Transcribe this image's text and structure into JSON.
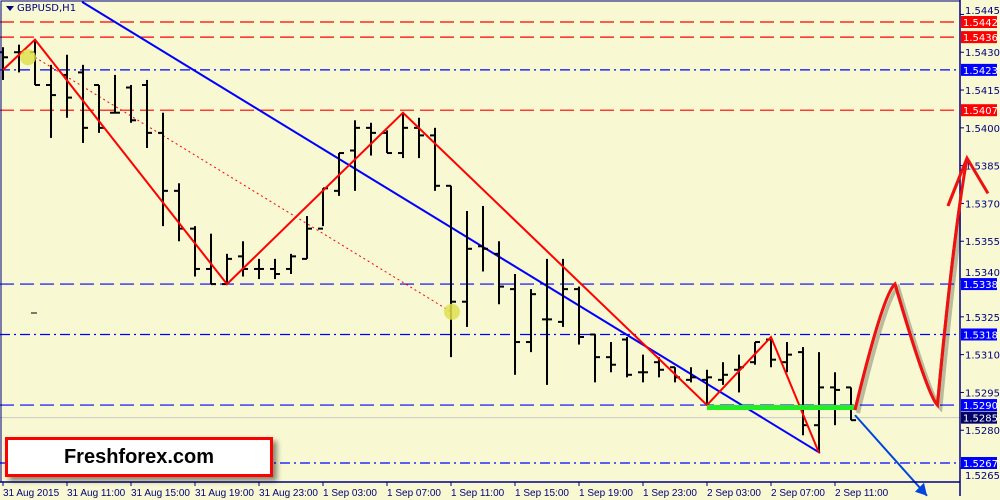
{
  "chart_data": {
    "type": "ohlc",
    "symbol_title": "GBPUSD,H1",
    "x_tick_labels": [
      "31 Aug 2015",
      "31 Aug 11:00",
      "31 Aug 15:00",
      "31 Aug 19:00",
      "31 Aug 23:00",
      "1 Sep 03:00",
      "1 Sep 07:00",
      "1 Sep 11:00",
      "1 Sep 15:00",
      "1 Sep 19:00",
      "1 Sep 23:00",
      "2 Sep 03:00",
      "2 Sep 07:00",
      "2 Sep 11:00"
    ],
    "y_tick_labels": [
      "1.5445",
      "1.5430",
      "1.5415",
      "1.5400",
      "1.5385",
      "1.5370",
      "1.5355",
      "1.5340",
      "1.5325",
      "1.5310",
      "1.5295",
      "1.5280",
      "1.5265"
    ],
    "ylim": [
      1.5255,
      1.545
    ],
    "bars_ohlc": [
      [
        1.543,
        1.5432,
        1.5419,
        1.5428
      ],
      [
        1.543,
        1.5433,
        1.5422,
        1.543
      ],
      [
        1.543,
        1.5435,
        1.5417,
        1.5417
      ],
      [
        1.5417,
        1.5425,
        1.5396,
        1.5413
      ],
      [
        1.5421,
        1.5429,
        1.5404,
        1.5412
      ],
      [
        1.5422,
        1.5425,
        1.5394,
        1.54
      ],
      [
        1.5417,
        1.5417,
        1.5398,
        1.54
      ],
      [
        1.5406,
        1.5421,
        1.5406,
        1.5406
      ],
      [
        1.5416,
        1.5417,
        1.5402,
        1.5403
      ],
      [
        1.5417,
        1.5419,
        1.5392,
        1.5398
      ],
      [
        1.5398,
        1.5406,
        1.5361,
        1.5375
      ],
      [
        1.5375,
        1.5378,
        1.5355,
        1.536
      ],
      [
        1.536,
        1.5361,
        1.5341,
        1.5344
      ],
      [
        1.5344,
        1.5358,
        1.5338,
        1.5338
      ],
      [
        1.5338,
        1.535,
        1.5338,
        1.5348
      ],
      [
        1.5349,
        1.5355,
        1.5341,
        1.5344
      ],
      [
        1.5344,
        1.5348,
        1.534,
        1.5344
      ],
      [
        1.5344,
        1.5348,
        1.534,
        1.5342
      ],
      [
        1.5344,
        1.535,
        1.5342,
        1.5349
      ],
      [
        1.5348,
        1.5365,
        1.5348,
        1.536
      ],
      [
        1.536,
        1.5376,
        1.5361,
        1.5376
      ],
      [
        1.5375,
        1.539,
        1.5373,
        1.539
      ],
      [
        1.5391,
        1.5403,
        1.5375,
        1.54
      ],
      [
        1.54,
        1.5402,
        1.5389,
        1.5398
      ],
      [
        1.5398,
        1.5399,
        1.539,
        1.539
      ],
      [
        1.539,
        1.5406,
        1.5388,
        1.54
      ],
      [
        1.54,
        1.5404,
        1.5388,
        1.5397
      ],
      [
        1.5397,
        1.54,
        1.5375,
        1.5377
      ],
      [
        1.5377,
        1.5377,
        1.5309,
        1.5331
      ],
      [
        1.5331,
        1.5367,
        1.5321,
        1.5352
      ],
      [
        1.5353,
        1.5369,
        1.5343,
        1.5352
      ],
      [
        1.535,
        1.5355,
        1.533,
        1.5337
      ],
      [
        1.5336,
        1.5342,
        1.5302,
        1.5315
      ],
      [
        1.5315,
        1.5336,
        1.5311,
        1.5334
      ],
      [
        1.5324,
        1.5348,
        1.5298,
        1.5324
      ],
      [
        1.5323,
        1.5348,
        1.5321,
        1.5336
      ],
      [
        1.5336,
        1.5337,
        1.5314,
        1.5317
      ],
      [
        1.5318,
        1.5318,
        1.5299,
        1.5309
      ],
      [
        1.5309,
        1.5315,
        1.5303,
        1.5306
      ],
      [
        1.5316,
        1.5317,
        1.5301,
        1.5302
      ],
      [
        1.5303,
        1.531,
        1.5299,
        1.5303
      ],
      [
        1.5307,
        1.5309,
        1.5301,
        1.5304
      ],
      [
        1.5305,
        1.5305,
        1.5299,
        1.5301
      ],
      [
        1.53,
        1.5305,
        1.5299,
        1.5301
      ],
      [
        1.53,
        1.5304,
        1.529,
        1.5301
      ],
      [
        1.53,
        1.5307,
        1.5298,
        1.5302
      ],
      [
        1.5304,
        1.531,
        1.5295,
        1.5305
      ],
      [
        1.5307,
        1.5315,
        1.5306,
        1.5315
      ],
      [
        1.5316,
        1.5317,
        1.5305,
        1.5308
      ],
      [
        1.5307,
        1.5315,
        1.5303,
        1.531
      ],
      [
        1.5311,
        1.5313,
        1.5278,
        1.5282
      ],
      [
        1.5282,
        1.5311,
        1.5271,
        1.5297
      ],
      [
        1.5297,
        1.5303,
        1.5282,
        1.5296
      ],
      [
        1.5297,
        1.5297,
        1.5284,
        1.5284
      ]
    ],
    "levels": [
      {
        "price": "1.5442",
        "color": "#ff0000",
        "style": "dashed"
      },
      {
        "price": "1.5436",
        "color": "#ff0000",
        "style": "dashed"
      },
      {
        "price": "1.5423",
        "color": "#0000ff",
        "style": "dashdot"
      },
      {
        "price": "1.5407",
        "color": "#ff0000",
        "style": "dashed"
      },
      {
        "price": "1.5338",
        "color": "#0000ff",
        "style": "dashed"
      },
      {
        "price": "1.5318",
        "color": "#0000ff",
        "style": "dashdot"
      },
      {
        "price": "1.5290",
        "color": "#0000ff",
        "style": "dashed"
      },
      {
        "price": "1.5267",
        "color": "#0000ff",
        "style": "dashdot"
      }
    ],
    "bid_level": {
      "price": "1.5285",
      "color": "#000066"
    },
    "trendline": {
      "color": "#0000ff",
      "from": [
        4.94,
        1.545
      ],
      "to": [
        51.06,
        1.5271
      ]
    },
    "zigzag": {
      "color": "#ff0000",
      "points": [
        [
          0,
          1.5423
        ],
        [
          2,
          1.5435
        ],
        [
          14,
          1.5338
        ],
        [
          25,
          1.5406
        ],
        [
          44,
          1.529
        ],
        [
          48,
          1.5317
        ],
        [
          51,
          1.5271
        ]
      ]
    },
    "dotted_line": {
      "color": "#ff0000",
      "from": [
        2,
        1.5428
      ],
      "to": [
        28,
        1.5327
      ]
    },
    "markers": [
      [
        1.56,
        1.5428
      ],
      [
        28.06,
        1.5327
      ]
    ],
    "support_line": {
      "color": "#22ee22",
      "from": [
        44,
        1.5289
      ],
      "to": [
        53.25,
        1.5289
      ]
    },
    "forecast_up": {
      "color": "#ee1111",
      "points": [
        [
          53.25,
          1.5288
        ],
        [
          55.75,
          1.5338
        ],
        [
          58.4,
          1.529
        ],
        [
          60.25,
          1.5388
        ]
      ],
      "head": [
        [
          59.06,
          1.5369
        ],
        [
          60.25,
          1.5388
        ],
        [
          61.56,
          1.5374
        ]
      ]
    },
    "forecast_down": {
      "color": "#0044dd",
      "from": [
        53.25,
        1.5286
      ],
      "to": [
        57.75,
        1.5254
      ]
    }
  },
  "brand": "Freshforex.com"
}
